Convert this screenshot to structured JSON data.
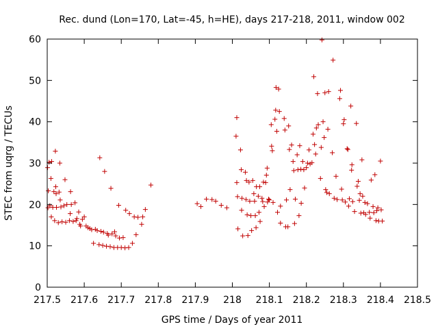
{
  "chart_data": {
    "type": "scatter",
    "title": "Rec. dund (Lon=170, Lat=-45, h=HE), days 217-218, 2011, window 002",
    "xlabel": "GPS time / Days of year 2011",
    "ylabel": "STEC from uqrg / TECUs",
    "xlim": [
      217.5,
      218.5
    ],
    "ylim": [
      0,
      60
    ],
    "xticks": [
      217.5,
      217.6,
      217.7,
      217.8,
      217.9,
      218.0,
      218.1,
      218.2,
      218.3,
      218.4,
      218.5
    ],
    "xtick_labels": [
      "217.5",
      "217.6",
      "217.7",
      "217.8",
      "217.9",
      "218",
      "218.1",
      "218.2",
      "218.3",
      "218.4",
      "218.5"
    ],
    "yticks": [
      0,
      10,
      20,
      30,
      40,
      50,
      60
    ],
    "ytick_labels": [
      "0",
      "10",
      "20",
      "30",
      "40",
      "50",
      "60"
    ],
    "grid": false,
    "legend": "none",
    "marker": "plus",
    "color": "#c00000",
    "points": [
      [
        217.501,
        28.9
      ],
      [
        217.505,
        30.2
      ],
      [
        217.503,
        23.3
      ],
      [
        217.502,
        19.2
      ],
      [
        217.507,
        19.7
      ],
      [
        217.51,
        26.3
      ],
      [
        217.512,
        30.4
      ],
      [
        217.511,
        17.0
      ],
      [
        217.515,
        19.3
      ],
      [
        217.518,
        23.1
      ],
      [
        217.52,
        16.1
      ],
      [
        217.522,
        32.9
      ],
      [
        217.523,
        24.3
      ],
      [
        217.524,
        22.6
      ],
      [
        217.525,
        19.3
      ],
      [
        217.53,
        15.6
      ],
      [
        217.532,
        23.0
      ],
      [
        217.534,
        30.0
      ],
      [
        217.535,
        21.1
      ],
      [
        217.537,
        19.4
      ],
      [
        217.54,
        15.8
      ],
      [
        217.545,
        19.7
      ],
      [
        217.548,
        26.0
      ],
      [
        217.55,
        15.7
      ],
      [
        217.553,
        20.0
      ],
      [
        217.56,
        16.1
      ],
      [
        217.562,
        17.8
      ],
      [
        217.563,
        23.1
      ],
      [
        217.565,
        20.0
      ],
      [
        217.57,
        15.9
      ],
      [
        217.575,
        20.4
      ],
      [
        217.578,
        16.1
      ],
      [
        217.58,
        16.6
      ],
      [
        217.585,
        18.2
      ],
      [
        217.588,
        15.2
      ],
      [
        217.59,
        14.8
      ],
      [
        217.595,
        16.4
      ],
      [
        217.6,
        17.0
      ],
      [
        217.605,
        14.8
      ],
      [
        217.61,
        14.4
      ],
      [
        217.615,
        14.2
      ],
      [
        217.62,
        13.9
      ],
      [
        217.625,
        10.6
      ],
      [
        217.63,
        14.0
      ],
      [
        217.635,
        13.7
      ],
      [
        217.64,
        10.3
      ],
      [
        217.642,
        31.3
      ],
      [
        217.645,
        13.5
      ],
      [
        217.65,
        10.1
      ],
      [
        217.652,
        13.3
      ],
      [
        217.655,
        28.0
      ],
      [
        217.66,
        9.9
      ],
      [
        217.662,
        13.0
      ],
      [
        217.665,
        12.6
      ],
      [
        217.67,
        9.8
      ],
      [
        217.672,
        23.9
      ],
      [
        217.675,
        12.9
      ],
      [
        217.68,
        9.6
      ],
      [
        217.682,
        13.4
      ],
      [
        217.685,
        12.4
      ],
      [
        217.69,
        9.6
      ],
      [
        217.693,
        19.8
      ],
      [
        217.695,
        11.9
      ],
      [
        217.7,
        9.6
      ],
      [
        217.705,
        12.0
      ],
      [
        217.71,
        9.5
      ],
      [
        217.712,
        18.6
      ],
      [
        217.72,
        9.6
      ],
      [
        217.722,
        17.8
      ],
      [
        217.73,
        10.6
      ],
      [
        217.735,
        17.0
      ],
      [
        217.74,
        12.7
      ],
      [
        217.745,
        16.9
      ],
      [
        217.755,
        15.2
      ],
      [
        217.758,
        17.0
      ],
      [
        217.765,
        18.8
      ],
      [
        217.78,
        24.7
      ],
      [
        217.905,
        20.2
      ],
      [
        217.915,
        19.5
      ],
      [
        217.93,
        21.3
      ],
      [
        217.945,
        21.2
      ],
      [
        217.955,
        20.8
      ],
      [
        217.97,
        19.8
      ],
      [
        217.985,
        19.2
      ],
      [
        218.012,
        41.0
      ],
      [
        218.01,
        36.5
      ],
      [
        218.012,
        25.3
      ],
      [
        218.014,
        21.9
      ],
      [
        218.015,
        14.1
      ],
      [
        218.022,
        33.2
      ],
      [
        218.024,
        28.4
      ],
      [
        218.025,
        18.6
      ],
      [
        218.026,
        21.5
      ],
      [
        218.028,
        12.4
      ],
      [
        218.035,
        27.8
      ],
      [
        218.037,
        21.2
      ],
      [
        218.038,
        25.8
      ],
      [
        218.04,
        17.5
      ],
      [
        218.042,
        12.5
      ],
      [
        218.045,
        25.4
      ],
      [
        218.047,
        20.8
      ],
      [
        218.05,
        17.3
      ],
      [
        218.052,
        13.7
      ],
      [
        218.055,
        25.8
      ],
      [
        218.058,
        22.6
      ],
      [
        218.06,
        20.8
      ],
      [
        218.062,
        17.3
      ],
      [
        218.064,
        14.4
      ],
      [
        218.065,
        24.3
      ],
      [
        218.07,
        22.0
      ],
      [
        218.072,
        18.1
      ],
      [
        218.074,
        24.3
      ],
      [
        218.075,
        15.9
      ],
      [
        218.08,
        21.5
      ],
      [
        218.082,
        20.7
      ],
      [
        218.084,
        25.4
      ],
      [
        218.086,
        19.5
      ],
      [
        218.09,
        25.3
      ],
      [
        218.092,
        27.1
      ],
      [
        218.094,
        28.8
      ],
      [
        218.095,
        20.6
      ],
      [
        218.098,
        21.3
      ],
      [
        218.1,
        21.1
      ],
      [
        218.105,
        39.3
      ],
      [
        218.106,
        34.1
      ],
      [
        218.108,
        33.0
      ],
      [
        218.11,
        20.5
      ],
      [
        218.115,
        40.6
      ],
      [
        218.117,
        42.8
      ],
      [
        218.118,
        48.3
      ],
      [
        218.12,
        37.7
      ],
      [
        218.122,
        18.1
      ],
      [
        218.125,
        47.9
      ],
      [
        218.127,
        42.5
      ],
      [
        218.13,
        19.6
      ],
      [
        218.13,
        15.5
      ],
      [
        218.14,
        40.8
      ],
      [
        218.142,
        38.0
      ],
      [
        218.144,
        14.6
      ],
      [
        218.146,
        21.1
      ],
      [
        218.15,
        14.6
      ],
      [
        218.152,
        39.0
      ],
      [
        218.154,
        33.3
      ],
      [
        218.156,
        23.6
      ],
      [
        218.16,
        34.4
      ],
      [
        218.164,
        30.4
      ],
      [
        218.166,
        28.2
      ],
      [
        218.168,
        15.4
      ],
      [
        218.17,
        21.3
      ],
      [
        218.175,
        32.0
      ],
      [
        218.177,
        28.4
      ],
      [
        218.18,
        17.3
      ],
      [
        218.182,
        34.2
      ],
      [
        218.185,
        28.5
      ],
      [
        218.186,
        20.3
      ],
      [
        218.19,
        30.4
      ],
      [
        218.193,
        28.4
      ],
      [
        218.195,
        24.0
      ],
      [
        218.2,
        28.9
      ],
      [
        218.203,
        30.0
      ],
      [
        218.207,
        33.2
      ],
      [
        218.21,
        29.8
      ],
      [
        218.215,
        30.1
      ],
      [
        218.218,
        37.0
      ],
      [
        218.22,
        50.9
      ],
      [
        218.222,
        34.5
      ],
      [
        218.225,
        32.2
      ],
      [
        218.227,
        38.5
      ],
      [
        218.23,
        46.8
      ],
      [
        218.232,
        39.3
      ],
      [
        218.238,
        26.3
      ],
      [
        218.24,
        33.8
      ],
      [
        218.242,
        59.8
      ],
      [
        218.245,
        40.0
      ],
      [
        218.248,
        36.2
      ],
      [
        218.25,
        47.0
      ],
      [
        218.252,
        23.6
      ],
      [
        218.255,
        22.9
      ],
      [
        218.258,
        38.2
      ],
      [
        218.26,
        47.3
      ],
      [
        218.262,
        22.6
      ],
      [
        218.27,
        32.5
      ],
      [
        218.272,
        54.9
      ],
      [
        218.275,
        21.5
      ],
      [
        218.28,
        26.8
      ],
      [
        218.283,
        21.2
      ],
      [
        218.29,
        45.6
      ],
      [
        218.292,
        47.6
      ],
      [
        218.295,
        23.7
      ],
      [
        218.297,
        21.1
      ],
      [
        218.3,
        39.5
      ],
      [
        218.302,
        40.5
      ],
      [
        218.305,
        20.6
      ],
      [
        218.31,
        33.5
      ],
      [
        218.312,
        33.3
      ],
      [
        218.314,
        19.6
      ],
      [
        218.316,
        21.4
      ],
      [
        218.32,
        43.8
      ],
      [
        218.322,
        28.3
      ],
      [
        218.323,
        29.6
      ],
      [
        218.325,
        20.7
      ],
      [
        218.33,
        18.3
      ],
      [
        218.335,
        39.6
      ],
      [
        218.337,
        24.4
      ],
      [
        218.34,
        25.6
      ],
      [
        218.343,
        21.0
      ],
      [
        218.345,
        22.6
      ],
      [
        218.347,
        17.9
      ],
      [
        218.35,
        30.8
      ],
      [
        218.352,
        22.0
      ],
      [
        218.355,
        18.0
      ],
      [
        218.358,
        20.5
      ],
      [
        218.36,
        17.6
      ],
      [
        218.365,
        20.2
      ],
      [
        218.37,
        18.1
      ],
      [
        218.372,
        16.7
      ],
      [
        218.375,
        25.9
      ],
      [
        218.38,
        19.5
      ],
      [
        218.382,
        18.0
      ],
      [
        218.385,
        27.2
      ],
      [
        218.388,
        16.1
      ],
      [
        218.39,
        18.5
      ],
      [
        218.393,
        19.2
      ],
      [
        218.395,
        16.0
      ],
      [
        218.4,
        30.5
      ],
      [
        218.402,
        18.7
      ],
      [
        218.405,
        16.0
      ]
    ]
  }
}
